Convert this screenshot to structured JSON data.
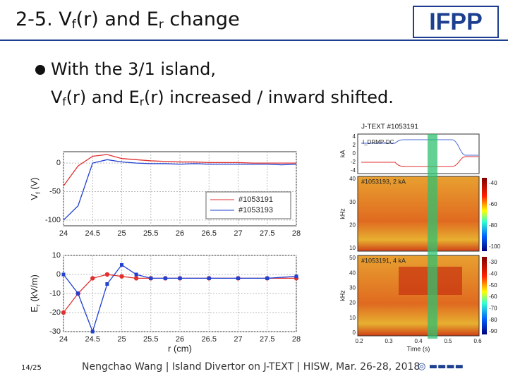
{
  "title": {
    "parts": [
      "2-5. V",
      "f",
      "(r) and E",
      "r",
      " change"
    ]
  },
  "logo": "IFPP",
  "bullet": {
    "line1": "With the 3/1 island,",
    "line2": [
      "V",
      "f",
      "(r) and E",
      "r",
      "(r) increased / inward shifted."
    ]
  },
  "chart_data": [
    {
      "type": "line",
      "ylabel": [
        "V",
        "f",
        " (V)"
      ],
      "x": [
        24,
        24.25,
        24.5,
        24.75,
        25,
        25.25,
        25.5,
        25.75,
        26,
        26.25,
        26.5,
        26.75,
        27,
        27.25,
        27.5,
        27.75,
        28
      ],
      "series": [
        {
          "name": "#1053191",
          "color": "#e03030",
          "values": [
            -40,
            -5,
            12,
            15,
            8,
            6,
            4,
            3,
            2,
            2,
            1,
            1,
            1,
            0,
            0,
            0,
            0
          ]
        },
        {
          "name": "#1053193",
          "color": "#2040d0",
          "values": [
            -100,
            -75,
            0,
            6,
            2,
            0,
            -1,
            -1,
            -2,
            -1,
            -2,
            -2,
            -2,
            -2,
            -2,
            -3,
            -2
          ]
        }
      ],
      "xlim": [
        24,
        28
      ],
      "xticks": [
        24,
        24.5,
        25,
        25.5,
        26,
        26.5,
        27,
        27.5,
        28
      ],
      "ylim": [
        -110,
        20
      ],
      "yticks": [
        -100,
        -50,
        0
      ],
      "grid": true,
      "legend": "lower-right",
      "markers": false
    },
    {
      "type": "line",
      "ylabel": [
        "E",
        "r",
        " (kV/m)"
      ],
      "xlabel": "r (cm)",
      "x": [
        24,
        24.25,
        24.5,
        24.75,
        25,
        25.25,
        25.5,
        25.75,
        26,
        26.5,
        27,
        27.5,
        28
      ],
      "series": [
        {
          "name": "#1053191",
          "color": "#e03030",
          "values": [
            -20,
            -10,
            -2,
            0,
            -1,
            -2,
            -2,
            -2,
            -2,
            -2,
            -2,
            -2,
            -2
          ]
        },
        {
          "name": "#1053193",
          "color": "#2040d0",
          "values": [
            0,
            -10,
            -30,
            -5,
            5,
            0,
            -2,
            -2,
            -2,
            -2,
            -2,
            -2,
            -1
          ]
        }
      ],
      "xlim": [
        24,
        28
      ],
      "xticks": [
        24,
        24.5,
        25,
        25.5,
        26,
        26.5,
        27,
        27.5,
        28
      ],
      "ylim": [
        -30,
        10
      ],
      "yticks": [
        -30,
        -20,
        -10,
        0,
        10
      ],
      "grid": true,
      "markers": true
    }
  ],
  "right_panel": {
    "title": "J-TEXT  #1053191",
    "top": {
      "ylabel": "kA",
      "legend": "I_DRMP-DC",
      "yticks": [
        "4",
        "2",
        "0",
        "-2",
        "-4"
      ]
    },
    "mid": {
      "label": "#1053193, 2 kA",
      "ylabel": "kHz",
      "yticks": [
        "40",
        "30",
        "20",
        "10"
      ],
      "cbar": [
        "-40",
        "-60",
        "-80",
        "-100"
      ]
    },
    "bottom": {
      "label": "#1053191, 4 kA",
      "ylabel": "kHz",
      "yticks": [
        "50",
        "40",
        "30",
        "20",
        "10",
        "0"
      ],
      "cbar": [
        "-30",
        "-40",
        "-50",
        "-60",
        "-70",
        "-80",
        "-90"
      ],
      "xticks": [
        "0.2",
        "0.3",
        "0.4",
        "0.5",
        "0.6"
      ],
      "xlabel": "Time (s)"
    }
  },
  "footer": {
    "page": "14/25",
    "text": "Nengchao Wang | Island Divertor on J-TEXT | HISW, Mar. 26-28, 2018"
  }
}
